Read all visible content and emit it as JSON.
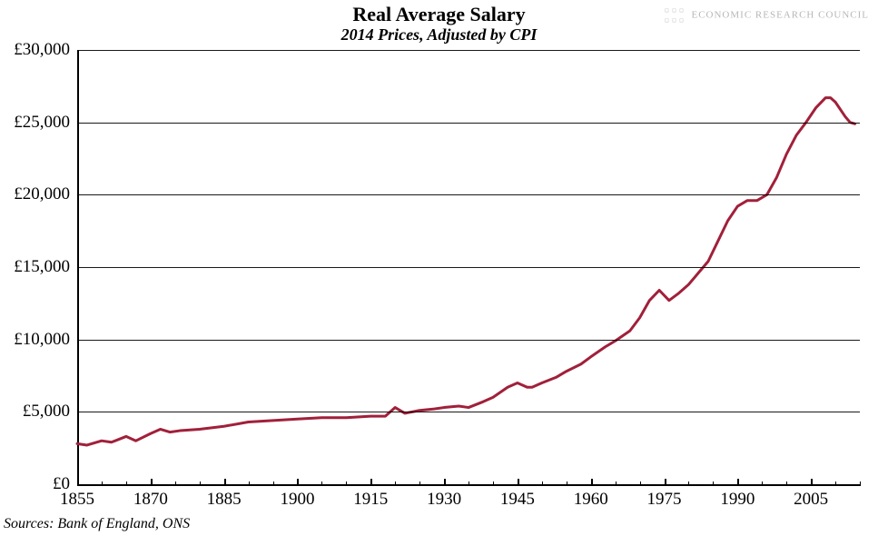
{
  "title": "Real Average Salary",
  "subtitle": "2014 Prices, Adjusted by CPI",
  "logo_text": "ECONOMIC RESEARCH COUNCIL",
  "source": "Sources: Bank of England, ONS",
  "chart": {
    "type": "line",
    "background_color": "#ffffff",
    "axis_color": "#000000",
    "grid_color": "#000000",
    "series_color": "#a1203a",
    "series_line_width": 3,
    "title_fontsize": 22,
    "subtitle_fontsize": 18,
    "axis_label_fontsize": 19,
    "x": {
      "min": 1855,
      "max": 2015,
      "major_ticks": [
        1855,
        1870,
        1885,
        1900,
        1915,
        1930,
        1945,
        1960,
        1975,
        1990,
        2005
      ],
      "minor_step": 5
    },
    "y": {
      "min": 0,
      "max": 30000,
      "ticks": [
        0,
        5000,
        10000,
        15000,
        20000,
        25000,
        30000
      ],
      "tick_labels": [
        "£0",
        "£5,000",
        "£10,000",
        "£15,000",
        "£20,000",
        "£25,000",
        "£30,000"
      ],
      "prefix": "£"
    },
    "series": [
      {
        "name": "real_avg_salary",
        "points": [
          [
            1855,
            2800
          ],
          [
            1857,
            2700
          ],
          [
            1860,
            3000
          ],
          [
            1862,
            2900
          ],
          [
            1865,
            3300
          ],
          [
            1867,
            3000
          ],
          [
            1870,
            3500
          ],
          [
            1872,
            3800
          ],
          [
            1874,
            3600
          ],
          [
            1876,
            3700
          ],
          [
            1880,
            3800
          ],
          [
            1885,
            4000
          ],
          [
            1890,
            4300
          ],
          [
            1895,
            4400
          ],
          [
            1900,
            4500
          ],
          [
            1905,
            4600
          ],
          [
            1910,
            4600
          ],
          [
            1915,
            4700
          ],
          [
            1918,
            4700
          ],
          [
            1920,
            5300
          ],
          [
            1922,
            4900
          ],
          [
            1925,
            5100
          ],
          [
            1928,
            5200
          ],
          [
            1930,
            5300
          ],
          [
            1933,
            5400
          ],
          [
            1935,
            5300
          ],
          [
            1938,
            5700
          ],
          [
            1940,
            6000
          ],
          [
            1943,
            6700
          ],
          [
            1945,
            7000
          ],
          [
            1947,
            6700
          ],
          [
            1948,
            6700
          ],
          [
            1950,
            7000
          ],
          [
            1953,
            7400
          ],
          [
            1955,
            7800
          ],
          [
            1958,
            8300
          ],
          [
            1960,
            8800
          ],
          [
            1963,
            9500
          ],
          [
            1965,
            9900
          ],
          [
            1968,
            10600
          ],
          [
            1970,
            11500
          ],
          [
            1972,
            12700
          ],
          [
            1974,
            13400
          ],
          [
            1976,
            12700
          ],
          [
            1978,
            13200
          ],
          [
            1980,
            13800
          ],
          [
            1982,
            14600
          ],
          [
            1984,
            15400
          ],
          [
            1986,
            16800
          ],
          [
            1988,
            18200
          ],
          [
            1990,
            19200
          ],
          [
            1992,
            19600
          ],
          [
            1994,
            19600
          ],
          [
            1996,
            20000
          ],
          [
            1998,
            21200
          ],
          [
            2000,
            22800
          ],
          [
            2002,
            24100
          ],
          [
            2004,
            25000
          ],
          [
            2006,
            26000
          ],
          [
            2008,
            26700
          ],
          [
            2009,
            26700
          ],
          [
            2010,
            26400
          ],
          [
            2012,
            25400
          ],
          [
            2013,
            25000
          ],
          [
            2014,
            24900
          ]
        ]
      }
    ]
  }
}
